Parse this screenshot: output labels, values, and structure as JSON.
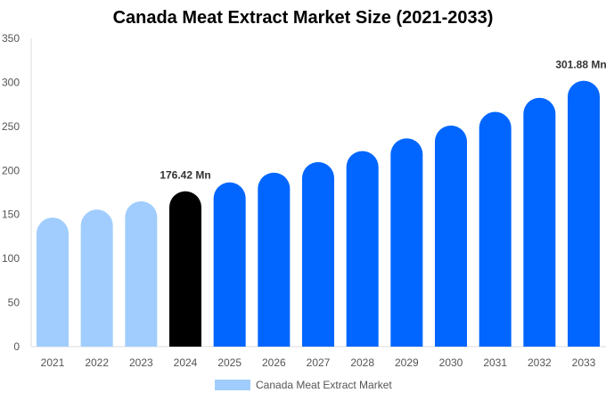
{
  "chart_data": {
    "type": "bar",
    "title": "Canada Meat Extract Market Size (2021-2033)",
    "categories": [
      "2021",
      "2022",
      "2023",
      "2024",
      "2025",
      "2026",
      "2027",
      "2028",
      "2029",
      "2030",
      "2031",
      "2032",
      "2033"
    ],
    "series": [
      {
        "name": "Canada Meat Extract Market",
        "values": [
          146.5,
          155.6,
          165.0,
          176.42,
          186.5,
          197.5,
          209.5,
          222.0,
          236.5,
          251.0,
          266.5,
          282.5,
          301.88
        ]
      }
    ],
    "bar_colors": [
      "#a0cdfd",
      "#a0cdfd",
      "#a0cdfd",
      "#000000",
      "#0066ff",
      "#0066ff",
      "#0066ff",
      "#0066ff",
      "#0066ff",
      "#0066ff",
      "#0066ff",
      "#0066ff",
      "#0066ff"
    ],
    "data_labels": [
      {
        "index": 3,
        "text": "176.42 Mn"
      },
      {
        "index": 12,
        "text": "301.88 Mn"
      }
    ],
    "ylim": [
      0,
      350
    ],
    "yticks": [
      0,
      50,
      100,
      150,
      200,
      250,
      300,
      350
    ],
    "grid": false,
    "legend_position": "bottom",
    "xlabel": "",
    "ylabel": ""
  }
}
